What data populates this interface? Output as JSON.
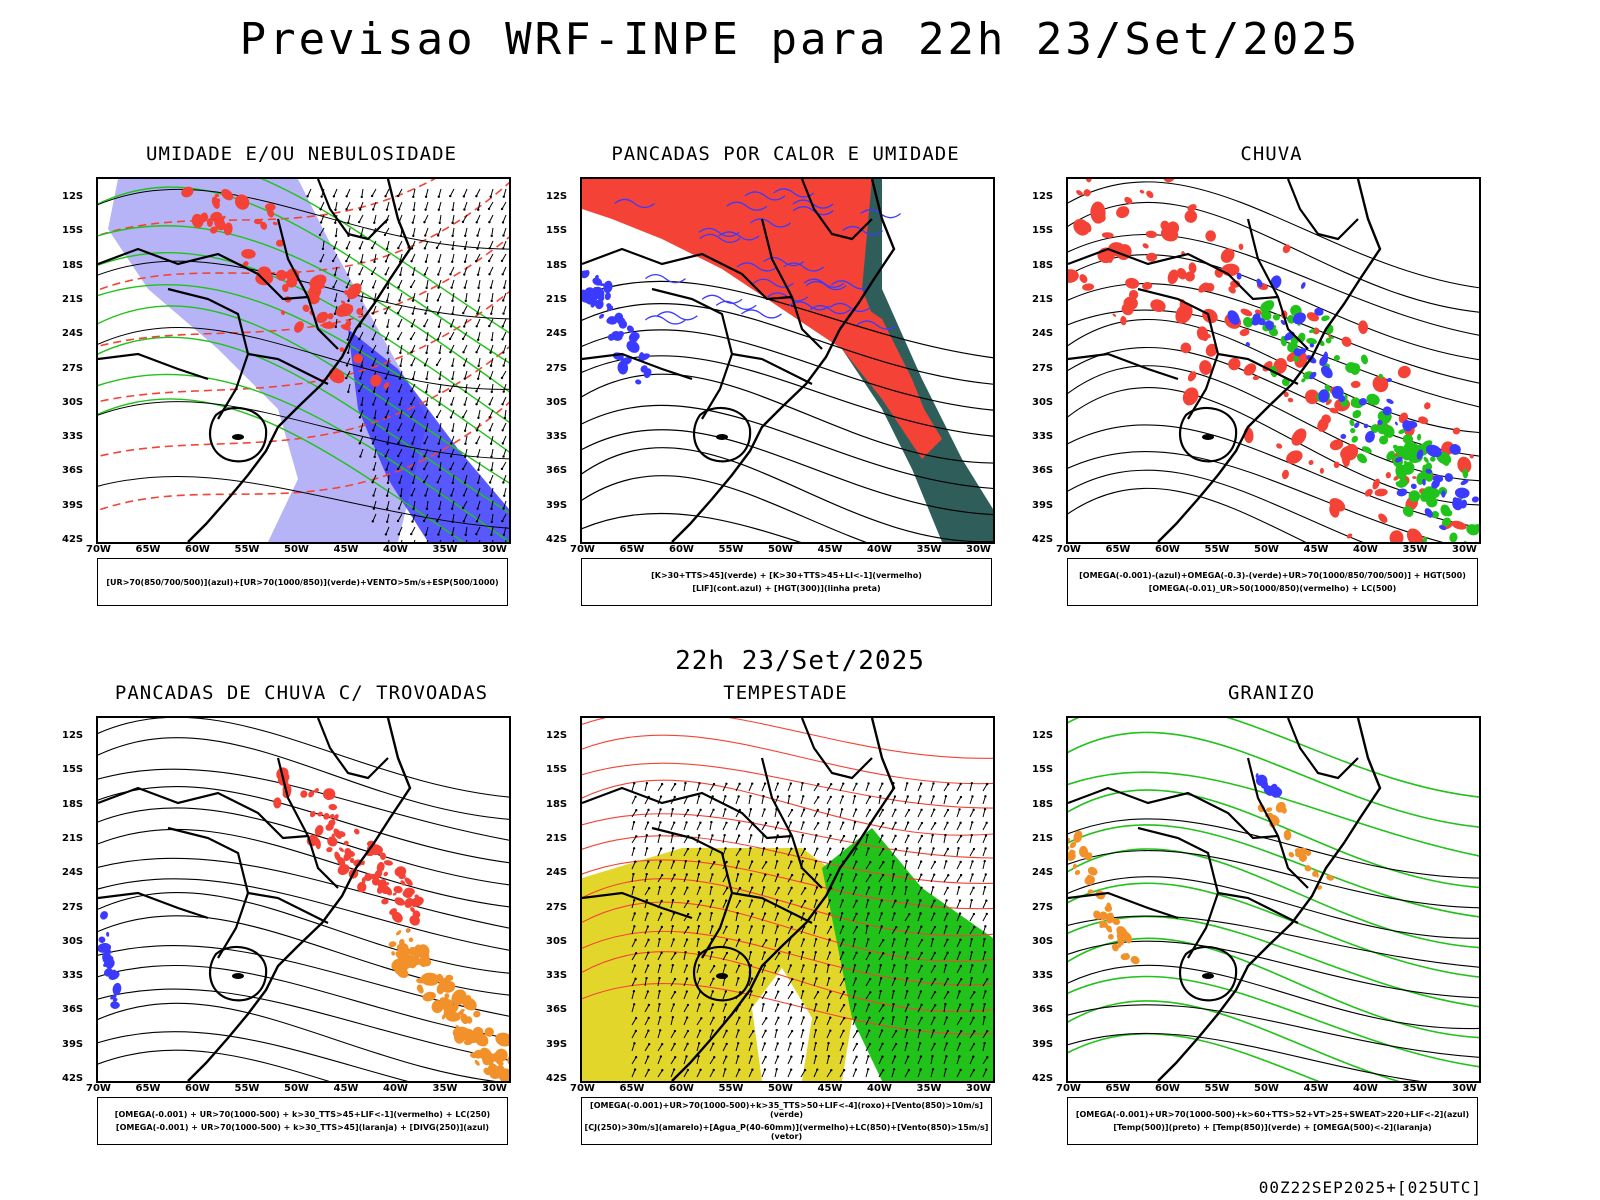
{
  "header": {
    "title": "Previsao WRF-INPE  para 22h 23/Set/2025"
  },
  "middle": {
    "title": "22h 23/Set/2025"
  },
  "footer": {
    "run": "00Z22SEP2025+[025UTC]"
  },
  "axes": {
    "lat_labels": [
      "12S",
      "15S",
      "18S",
      "21S",
      "24S",
      "27S",
      "30S",
      "33S",
      "36S",
      "39S",
      "42S"
    ],
    "lon_labels": [
      "70W",
      "65W",
      "60W",
      "55W",
      "50W",
      "45W",
      "40W",
      "35W",
      "30W"
    ]
  },
  "panels": [
    {
      "title": "UMIDADE E/OU NEBULOSIDADE",
      "legend": [
        "[UR>70(850/700/500)](azul)+[UR>70(1000/850)](verde)+VENTO>5m/s+ESP(500/1000)"
      ],
      "fields": [
        "light-blue-humidity",
        "green-contours",
        "red-dashed-thickness",
        "black-isobars",
        "wind-barbs"
      ]
    },
    {
      "title": "PANCADAS POR CALOR E UMIDADE",
      "legend": [
        "[K>30+TTS>45](verde) + [K>30+TTS>45+LI<-1](vermelho)",
        "[LIF](cont.azul) + [HGT(300)](linha preta)"
      ],
      "fields": [
        "red-fill",
        "dark-teal-fill",
        "blue-contours",
        "black-height-lines"
      ]
    },
    {
      "title": "CHUVA",
      "legend": [
        "[OMEGA(-0.001)-(azul)+OMEGA(-0.3)-(verde)+UR>70(1000/850/700/500)] + HGT(500)",
        "[OMEGA(-0.01)_UR>50(1000/850)(vermelho) + LC(500)"
      ],
      "fields": [
        "red-patches",
        "blue-patches",
        "green-patches",
        "black-height-lines"
      ]
    },
    {
      "title": "PANCADAS DE CHUVA C/ TROVOADAS",
      "legend": [
        "[OMEGA(-0.001) + UR>70(1000-500) + k>30_TTS>45+LIF<-1](vermelho) + LC(250)",
        "[OMEGA(-0.001) + UR>70(1000-500) + k>30_TTS>45](laranja) + [DIVG(250)](azul)"
      ],
      "fields": [
        "red-patches",
        "orange-patches",
        "blue-patches",
        "black-streamlines"
      ]
    },
    {
      "title": "TEMPESTADE",
      "legend": [
        "[OMEGA(-0.001)+UR>70(1000-500)+k>35_TTS>50+LIF<-4](roxo)+[Vento(850)>10m/s](verde)",
        "[CJ(250)>30m/s](amarelo)+[Agua_P(40-60mm)](vermelho)+LC(850)+[Vento(850)>15m/s](vetor)"
      ],
      "fields": [
        "yellow-jet",
        "green-wind",
        "red-water-contours",
        "wind-vectors"
      ]
    },
    {
      "title": "GRANIZO",
      "legend": [
        "[OMEGA(-0.001)+UR>70(1000-500)+k>60+TTS>52+VT>25+SWEAT>220+LIF<-2](azul)",
        "[Temp(500)](preto) + [Temp(850)](verde) + [OMEGA(500)<-2](laranja)"
      ],
      "fields": [
        "green-temp-contours",
        "black-temp-contours",
        "orange-patches",
        "blue-patches"
      ]
    }
  ],
  "colors": {
    "red": "#f44336",
    "green": "#21c21a",
    "blue": "#3b3bff",
    "lightblue": "#a9a6f5",
    "teal": "#2f5e5a",
    "yellow": "#e3d62b",
    "orange": "#f2912a"
  }
}
